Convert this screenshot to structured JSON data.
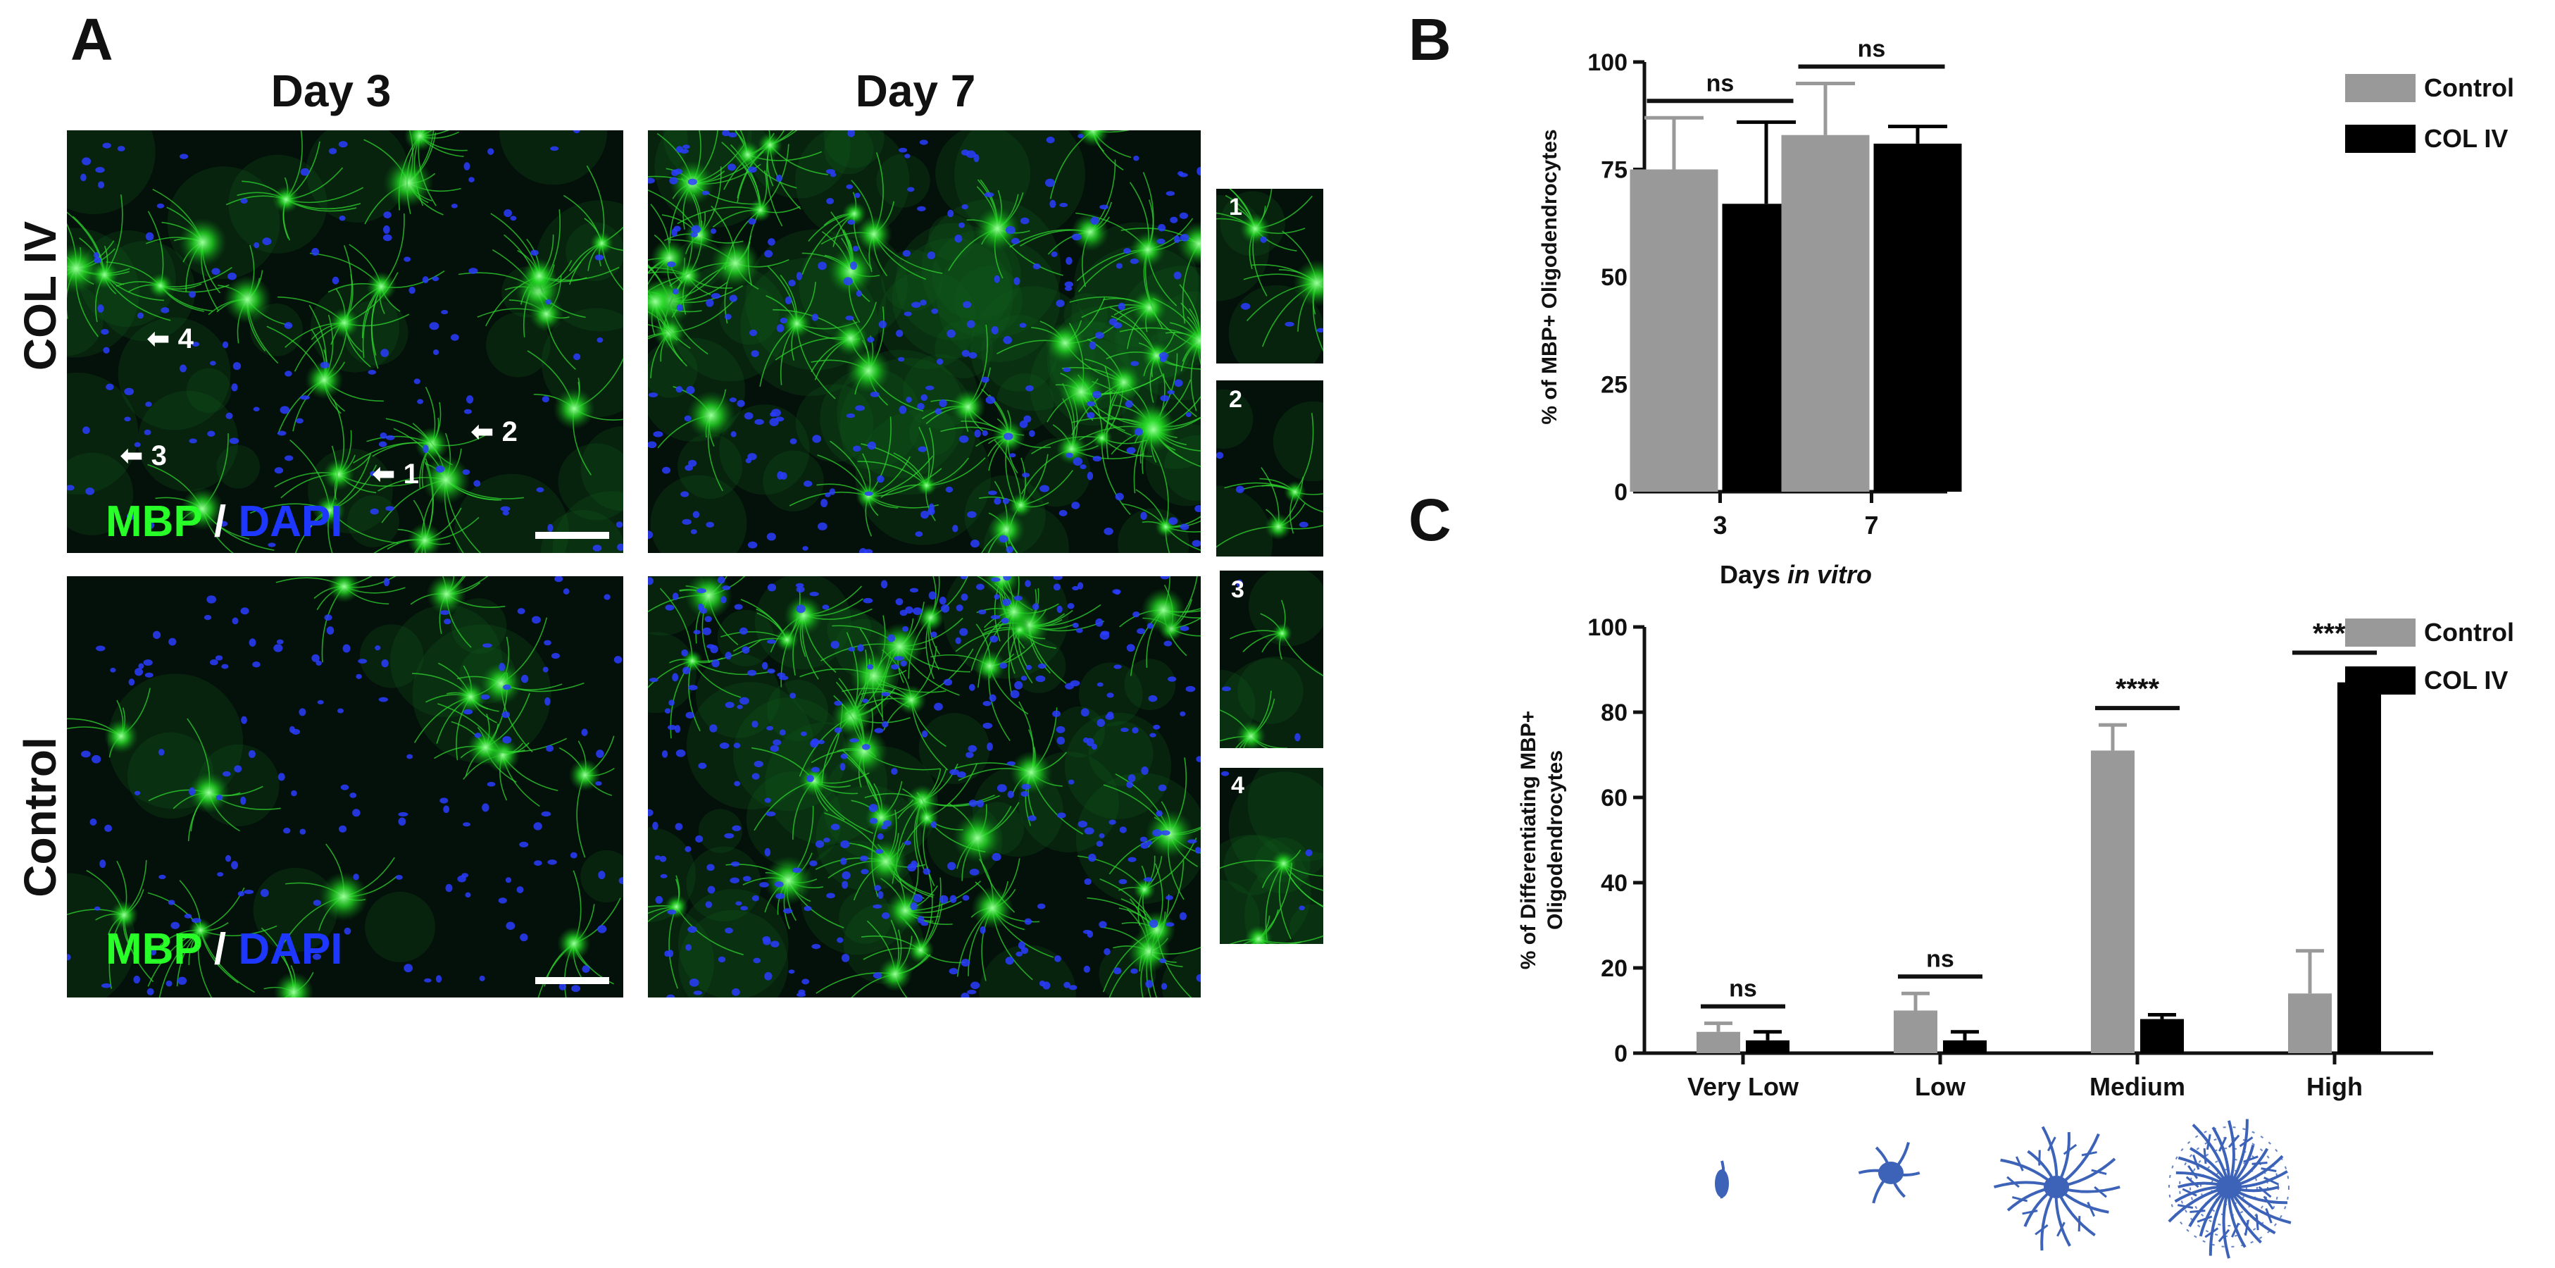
{
  "figure": {
    "panel_a": {
      "letter": "A",
      "columns": [
        "Day 3",
        "Day 7"
      ],
      "rows": [
        "COL IV",
        "Control"
      ],
      "stain": {
        "mbp": "MBP",
        "slash": "/",
        "dapi": "DAPI"
      },
      "arrow_labels": [
        "4",
        "3",
        "1",
        "2"
      ],
      "inset_labels": [
        "1",
        "2",
        "3",
        "4"
      ],
      "colors": {
        "mbp_green": "#28ff28",
        "dapi_blue": "#1e37ff"
      }
    },
    "panel_b": {
      "letter": "B"
    },
    "panel_c": {
      "letter": "C"
    }
  },
  "chart_data": [
    {
      "type": "bar",
      "categories": [
        "3",
        "7"
      ],
      "xlabel": "Days in vitro",
      "xlabel_plain": "Days",
      "xlabel_italic": "in vitro",
      "ylabel": "% of MBP+ Oligodendrocytes",
      "ylim": [
        0,
        100
      ],
      "yticks": [
        0,
        25,
        50,
        75,
        100
      ],
      "series": [
        {
          "name": "Control",
          "color": "#999999",
          "values": [
            75,
            83
          ],
          "errors": [
            12,
            12
          ]
        },
        {
          "name": "COL IV",
          "color": "#000000",
          "values": [
            67,
            81
          ],
          "errors": [
            19,
            4
          ]
        }
      ],
      "significance": [
        "ns",
        "ns"
      ],
      "legend_position": "top-right"
    },
    {
      "type": "bar",
      "categories": [
        "Very Low",
        "Low",
        "Medium",
        "High"
      ],
      "ylabel": "% of Differentiating MBP+ Oligodendrocytes",
      "ylim": [
        0,
        100
      ],
      "yticks": [
        0,
        20,
        40,
        60,
        80,
        100
      ],
      "series": [
        {
          "name": "Control",
          "color": "#999999",
          "values": [
            5,
            10,
            71,
            14
          ],
          "errors": [
            2,
            4,
            6,
            10
          ]
        },
        {
          "name": "COL IV",
          "color": "#000000",
          "values": [
            3,
            3,
            8,
            87
          ],
          "errors": [
            2,
            2,
            1,
            3
          ]
        }
      ],
      "significance": [
        "ns",
        "ns",
        "****",
        "****"
      ],
      "legend_position": "top-right"
    }
  ],
  "cell_icons": [
    "very-low-cell-icon",
    "low-cell-icon",
    "medium-cell-icon",
    "high-cell-icon"
  ]
}
